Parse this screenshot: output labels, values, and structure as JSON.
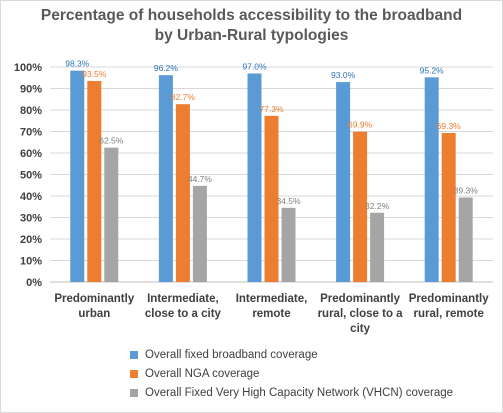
{
  "chart_data": {
    "type": "bar",
    "title_lines": [
      "Percentage of households  accessibility to the broadband",
      "by Urban-Rural  typologies"
    ],
    "categories": [
      [
        "Predominantly",
        "urban"
      ],
      [
        "Intermediate,",
        "close to a city"
      ],
      [
        "Intermediate,",
        "remote"
      ],
      [
        "Predominantly",
        "rural, close to a",
        "city"
      ],
      [
        "Predominantly",
        "rural, remote"
      ]
    ],
    "series": [
      {
        "name": "Overall fixed broadband coverage",
        "color": "#5b9bd5",
        "values": [
          98.3,
          96.2,
          97.0,
          93.0,
          95.2
        ],
        "labels": [
          "98.3%",
          "96.2%",
          "97.0%",
          "93.0%",
          "95.2%"
        ],
        "label_color": "#2e75b6"
      },
      {
        "name": "Overall NGA coverage",
        "color": "#ed7d31",
        "values": [
          93.5,
          82.7,
          77.3,
          69.9,
          69.3
        ],
        "labels": [
          "93.5%",
          "82.7%",
          "77.3%",
          "69.9%",
          "69.3%"
        ],
        "label_color": "#ed7d31"
      },
      {
        "name": "Overall Fixed Very High Capacity Network (VHCN) coverage",
        "color": "#a5a5a5",
        "values": [
          62.5,
          44.7,
          34.5,
          32.2,
          39.3
        ],
        "labels": [
          "62.5%",
          "44.7%",
          "34.5%",
          "32.2%",
          "39.3%"
        ],
        "label_color": "#7f7f7f"
      }
    ],
    "y_ticks": [
      "0%",
      "10%",
      "20%",
      "30%",
      "40%",
      "50%",
      "60%",
      "70%",
      "80%",
      "90%",
      "100%"
    ],
    "ylim": [
      0,
      100
    ],
    "grid": true,
    "legend_position": "bottom"
  }
}
